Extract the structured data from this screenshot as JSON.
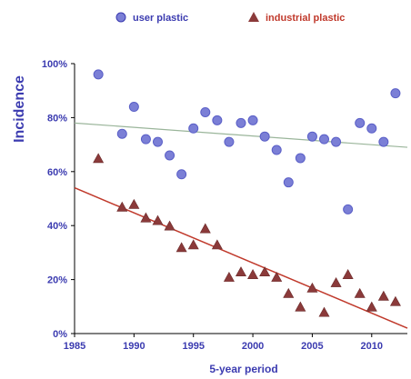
{
  "chart_data": {
    "type": "scatter",
    "xlabel": "5-year period",
    "ylabel": "Incidence",
    "xlim": [
      1985,
      2013
    ],
    "ylim": [
      0,
      100
    ],
    "x_ticks": [
      1985,
      1990,
      1995,
      2000,
      2005,
      2010
    ],
    "x_tick_labels": [
      "1985",
      "1990",
      "1995",
      "2000",
      "2005",
      "2010"
    ],
    "y_ticks": [
      0,
      20,
      40,
      60,
      80,
      100
    ],
    "y_tick_labels": [
      "0%",
      "20%",
      "40%",
      "60%",
      "80%",
      "100%"
    ],
    "grid": false,
    "legend_position": "top",
    "series": [
      {
        "name": "user plastic",
        "marker": "circle",
        "color": "#7b7fd6",
        "trend_color": "#9ab59a",
        "trend": [
          [
            1985,
            78
          ],
          [
            2013,
            69
          ]
        ],
        "points": [
          [
            1987,
            96
          ],
          [
            1989,
            74
          ],
          [
            1990,
            84
          ],
          [
            1991,
            72
          ],
          [
            1992,
            71
          ],
          [
            1993,
            66
          ],
          [
            1994,
            59
          ],
          [
            1995,
            76
          ],
          [
            1996,
            82
          ],
          [
            1997,
            79
          ],
          [
            1998,
            71
          ],
          [
            1999,
            78
          ],
          [
            2000,
            79
          ],
          [
            2001,
            73
          ],
          [
            2002,
            68
          ],
          [
            2003,
            56
          ],
          [
            2004,
            65
          ],
          [
            2005,
            73
          ],
          [
            2006,
            72
          ],
          [
            2007,
            71
          ],
          [
            2008,
            46
          ],
          [
            2009,
            78
          ],
          [
            2010,
            76
          ],
          [
            2011,
            71
          ],
          [
            2012,
            89
          ]
        ]
      },
      {
        "name": "industrial plastic",
        "marker": "triangle",
        "color": "#8b3a3a",
        "trend_color": "#c0392b",
        "trend": [
          [
            1985,
            54
          ],
          [
            2013,
            2
          ]
        ],
        "points": [
          [
            1987,
            65
          ],
          [
            1989,
            47
          ],
          [
            1990,
            48
          ],
          [
            1991,
            43
          ],
          [
            1992,
            42
          ],
          [
            1993,
            40
          ],
          [
            1994,
            32
          ],
          [
            1995,
            33
          ],
          [
            1996,
            39
          ],
          [
            1997,
            33
          ],
          [
            1998,
            21
          ],
          [
            1999,
            23
          ],
          [
            2000,
            22
          ],
          [
            2001,
            23
          ],
          [
            2002,
            21
          ],
          [
            2003,
            15
          ],
          [
            2004,
            10
          ],
          [
            2005,
            17
          ],
          [
            2006,
            8
          ],
          [
            2007,
            19
          ],
          [
            2008,
            22
          ],
          [
            2009,
            15
          ],
          [
            2010,
            10
          ],
          [
            2011,
            14
          ],
          [
            2012,
            12
          ]
        ]
      }
    ]
  }
}
